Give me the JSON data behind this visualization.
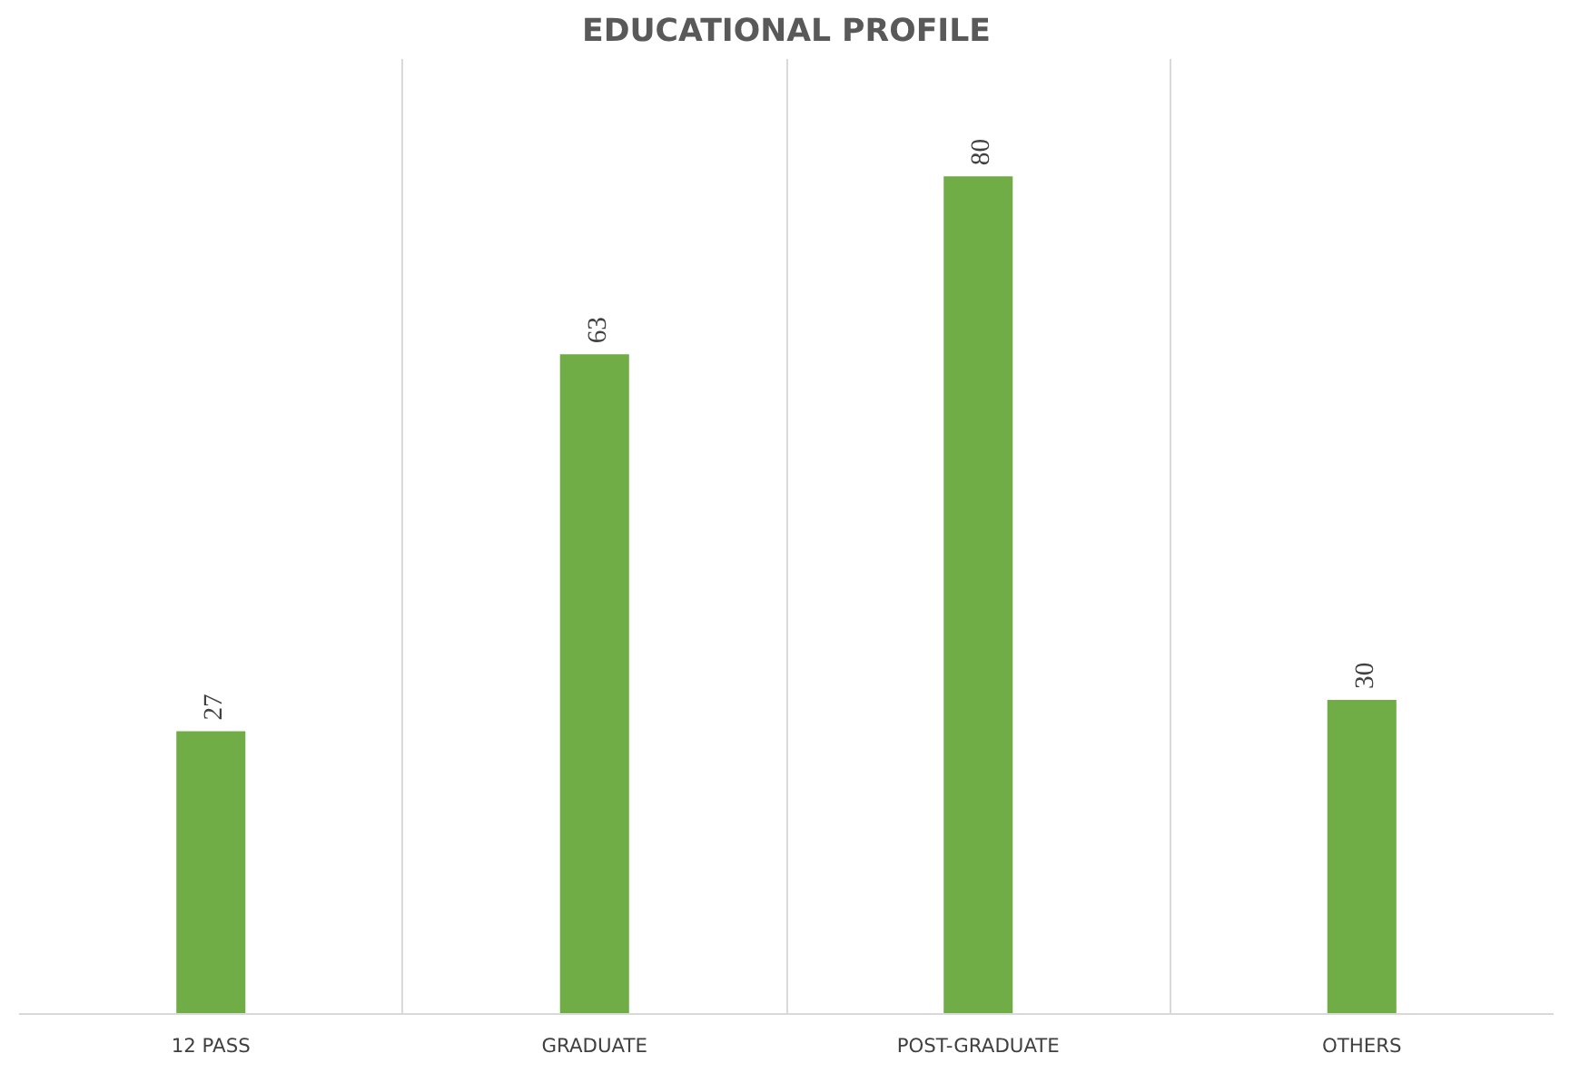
{
  "chart_data": {
    "type": "bar",
    "title": "EDUCATIONAL PROFILE",
    "categories": [
      "12 PASS",
      "GRADUATE",
      "POST-GRADUATE",
      "OTHERS"
    ],
    "values": [
      27,
      63,
      80,
      30
    ],
    "color": "#70ad47",
    "data_labels": true,
    "grid": "x"
  }
}
